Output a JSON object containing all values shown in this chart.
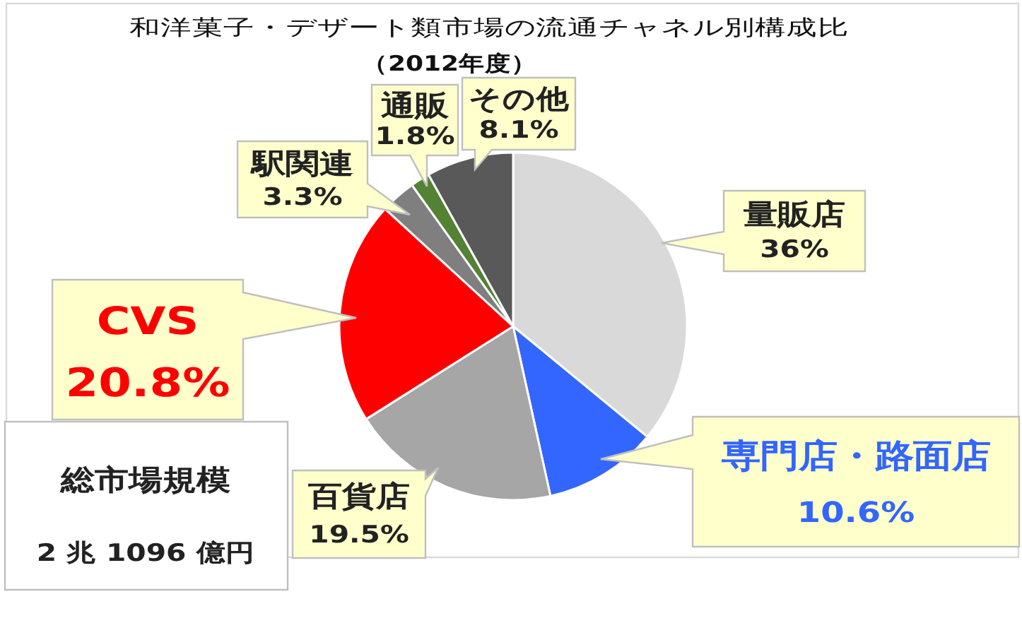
{
  "chart_data": {
    "type": "pie",
    "title": "和洋菓子・デザート類市場の流通チャネル別構成比",
    "subtitle": "（2012年度）",
    "categories": [
      "量販店",
      "専門店・路面店",
      "百貨店",
      "CVS",
      "駅関連",
      "通販",
      "その他"
    ],
    "values": [
      36,
      10.6,
      19.5,
      20.8,
      3.3,
      1.8,
      8.1
    ],
    "colors": [
      "#d9d9d9",
      "#3366ff",
      "#a6a6a6",
      "#ff0000",
      "#7f7f7f",
      "#548235",
      "#595959"
    ],
    "value_labels": [
      "36%",
      "10.6%",
      "19.5%",
      "20.8%",
      "3.3%",
      "1.8%",
      "8.1%"
    ],
    "annotations": [
      "総市場規模",
      "2 兆 1096 億円"
    ]
  }
}
